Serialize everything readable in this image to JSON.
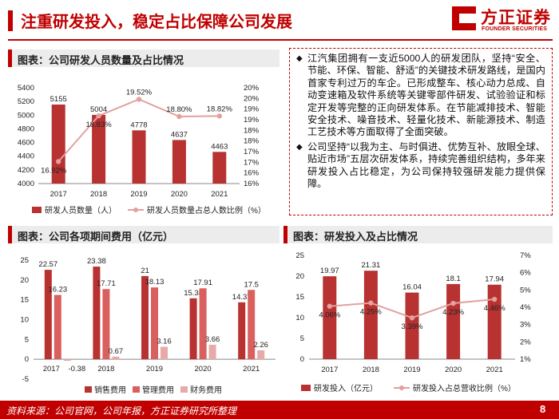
{
  "header": {
    "title": "注重研发投入，稳定占比保障公司发展",
    "logo_cn": "方正证券",
    "logo_en": "FOUNDER SECURITIES"
  },
  "sections": {
    "staff": "图表：公司研发人员数量及占比情况",
    "expenses": "图表：公司各项期间费用（亿元）",
    "rd": "图表：研发投入及占比情况"
  },
  "text_box": {
    "bullet_1": "江汽集团拥有一支近5000人的研发团队，坚持“安全、节能、环保、智能、舒适”的关键技术研发路线，是国内首家专利过万的车企。已形成整车、核心动力总成、自动变速箱及软件系统等关键零部件研发、试验验证和标定开发等完整的正向研发体系。在节能减排技术、智能安全技术、噪音技术、轻量化技术、新能源技术、制造工艺技术等方面取得了全面突破。",
    "bullet_2": "公司坚持“以我为主、与时俱进、优势互补、放眼全球、贴近市场”五层次研发体系，持续完善组织结构，多年来研发投入占比稳定，为公司保持较强研发能力提供保障。"
  },
  "footer": {
    "source": "资料来源：公司官网，公司年报，方正证券研究所整理",
    "page": "8"
  },
  "colors": {
    "brand_red": "#c00000",
    "bar_dark_red": "#b73231",
    "bar_mid_red": "#d9605e",
    "bar_light_pink": "#e8aaa8",
    "line_pink": "#e3a09e"
  },
  "chart_data": [
    {
      "type": "bar",
      "categories": [
        "2017",
        "2018",
        "2019",
        "2020",
        "2021"
      ],
      "series": [
        {
          "name": "研发人员数量（人）",
          "values": [
            5155,
            5004,
            4778,
            4637,
            4463
          ],
          "labels": [
            "5155",
            "5004",
            "4778",
            "4637",
            "4463"
          ],
          "axis": "left"
        },
        {
          "name": "研发人员数量占总人数比例（%）",
          "type": "line",
          "values": [
            16.92,
            18.83,
            19.52,
            18.8,
            18.82
          ],
          "labels": [
            "16.92%",
            "18.83%",
            "19.52%",
            "18.80%",
            "18.82%"
          ],
          "axis": "right"
        }
      ],
      "ylim": [
        4000,
        5400
      ],
      "yticks": [
        "4000",
        "4200",
        "4400",
        "4600",
        "4800",
        "5000",
        "5200",
        "5400"
      ],
      "y2lim": [
        16,
        20
      ],
      "y2ticks": [
        "16%",
        "16%",
        "17%",
        "17%",
        "18%",
        "18%",
        "19%",
        "19%",
        "20%",
        "20%"
      ],
      "legend": "bottom",
      "grid": false
    },
    {
      "type": "bar",
      "categories": [
        "2017",
        "2018",
        "2019",
        "2020",
        "2021"
      ],
      "series": [
        {
          "name": "销售费用",
          "values": [
            22.57,
            23.38,
            21,
            15.38,
            14.37
          ],
          "labels": [
            "22.57",
            "23.38",
            "21",
            "15.38",
            "14.37"
          ]
        },
        {
          "name": "管理费用",
          "values": [
            16.23,
            17.71,
            18.13,
            17.91,
            17.5
          ],
          "labels": [
            "16.23",
            "17.71",
            "18.13",
            "17.91",
            "17.5"
          ]
        },
        {
          "name": "财务费用",
          "values": [
            -0.38,
            0.67,
            3.16,
            3.66,
            2.26
          ],
          "labels": [
            "-0.38",
            "0.67",
            "3.16",
            "3.66",
            "2.26"
          ]
        }
      ],
      "ylim": [
        -5,
        25
      ],
      "yticks": [
        "-5",
        "0",
        "5",
        "10",
        "15",
        "20",
        "25"
      ],
      "legend": "bottom",
      "grid": false
    },
    {
      "type": "bar",
      "categories": [
        "2017",
        "2018",
        "2019",
        "2020",
        "2021"
      ],
      "series": [
        {
          "name": "研发投入（亿元）",
          "values": [
            19.97,
            21.31,
            16.04,
            18.1,
            17.94
          ],
          "labels": [
            "19.97",
            "21.31",
            "16.04",
            "18.1",
            "17.94"
          ],
          "axis": "left"
        },
        {
          "name": "研发投入占总营收比例（%）",
          "type": "line",
          "values": [
            4.06,
            4.25,
            3.39,
            4.23,
            4.46
          ],
          "labels": [
            "4.06%",
            "4.25%",
            "3.39%",
            "4.23%",
            "4.46%"
          ],
          "axis": "right"
        }
      ],
      "ylim": [
        0,
        25
      ],
      "yticks": [
        "0",
        "5",
        "10",
        "15",
        "20",
        "25"
      ],
      "y2lim": [
        1,
        7
      ],
      "y2ticks": [
        "1%",
        "2%",
        "3%",
        "4%",
        "5%",
        "6%",
        "7%"
      ],
      "legend": "bottom",
      "grid": false
    }
  ]
}
